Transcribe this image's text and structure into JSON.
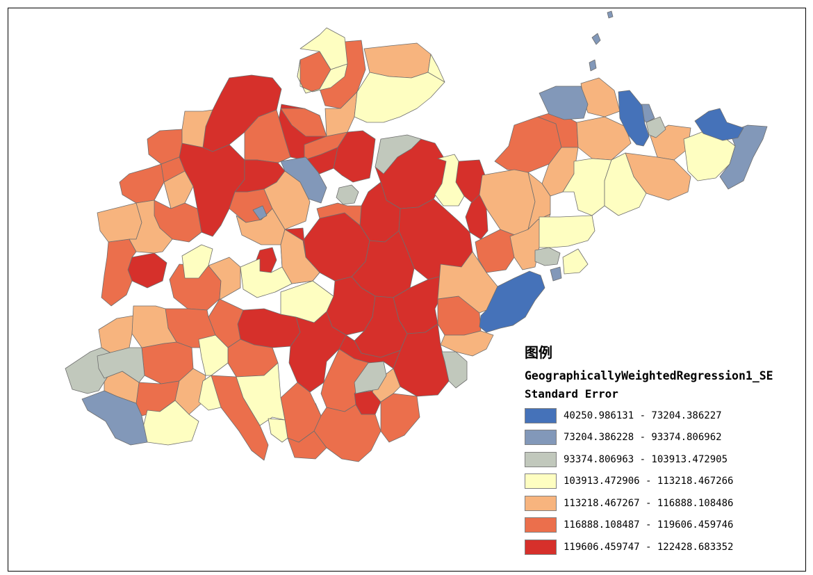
{
  "colors": {
    "c1": "#4572b9",
    "c2": "#8298b9",
    "c3": "#c1c8bc",
    "c4": "#fefec1",
    "c5": "#f7b47e",
    "c6": "#eb6f4c",
    "c7": "#d6302b"
  },
  "legend": {
    "title": "图例",
    "layer_name": "GeographicallyWeightedRegression1_SE",
    "field_name": "Standard Error",
    "classes": [
      {
        "label": "40250.986131 - 73204.386227",
        "color": "#4572b9"
      },
      {
        "label": "73204.386228 - 93374.806962",
        "color": "#8298b9"
      },
      {
        "label": "93374.806963 - 103913.472905",
        "color": "#c1c8bc"
      },
      {
        "label": "103913.472906 - 113218.467266",
        "color": "#fefec1"
      },
      {
        "label": "113218.467267 - 116888.108486",
        "color": "#f7b47e"
      },
      {
        "label": "116888.108487 - 119606.459746",
        "color": "#eb6f4c"
      },
      {
        "label": "119606.459747 - 122428.683352",
        "color": "#d6302b"
      }
    ]
  }
}
